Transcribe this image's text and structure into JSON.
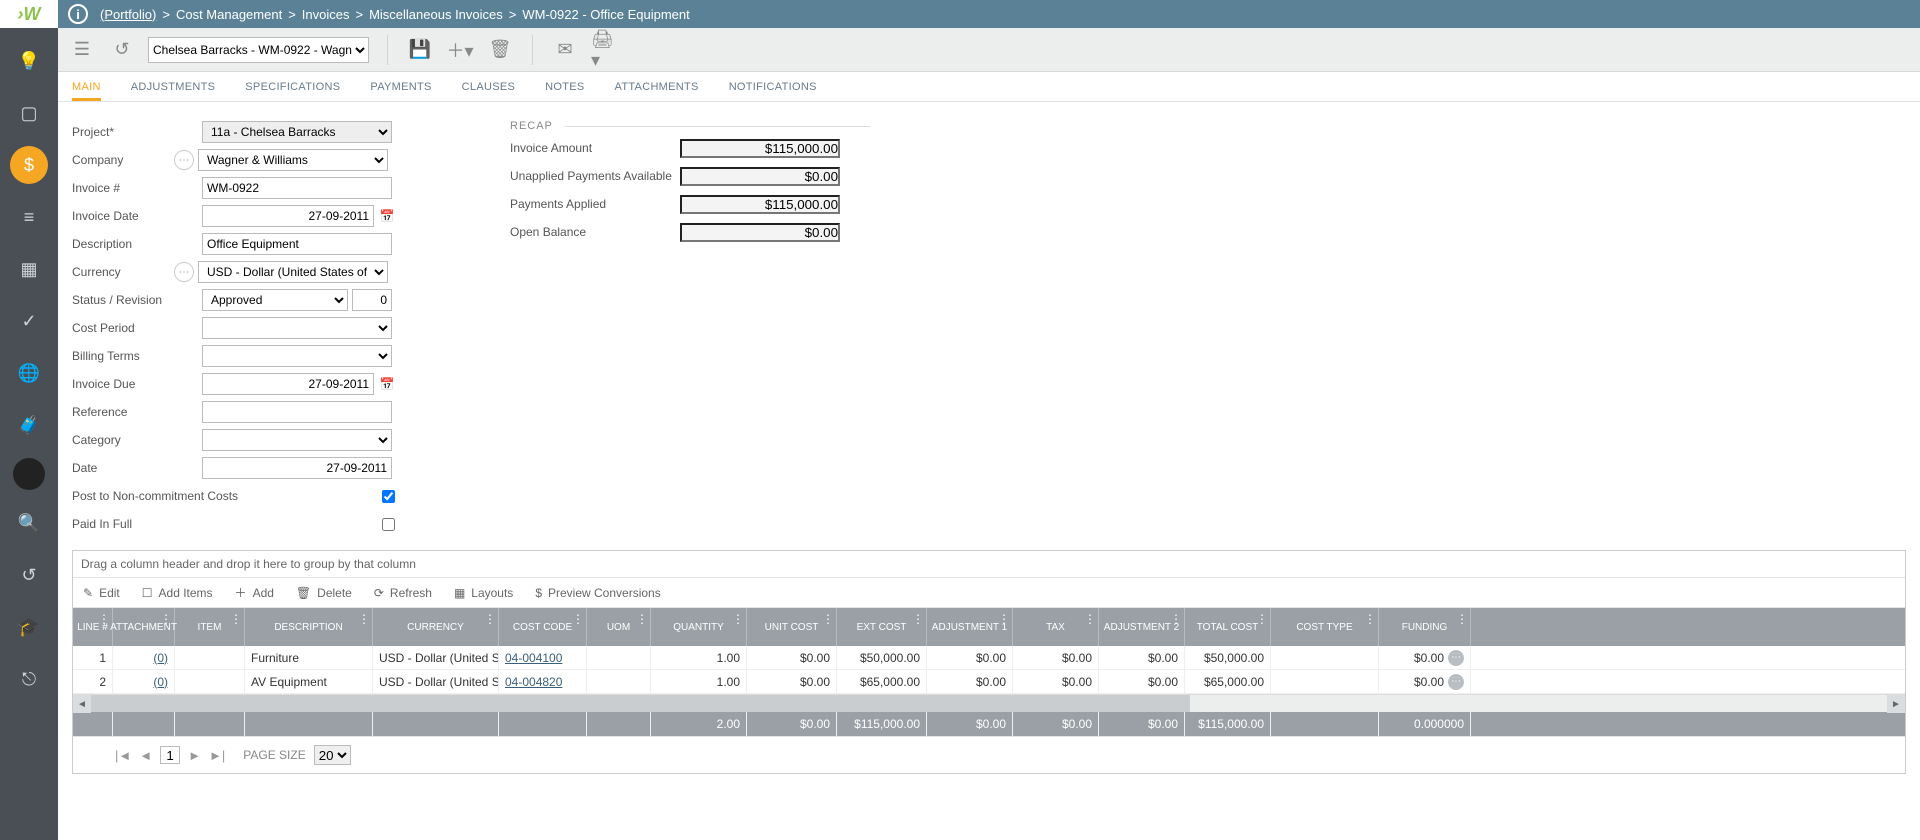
{
  "breadcrumb": {
    "portfolio": "(Portfolio)",
    "parts": [
      "Cost Management",
      "Invoices",
      "Miscellaneous Invoices",
      "WM-0922 - Office Equipment"
    ]
  },
  "toolbar": {
    "context_select": "Chelsea Barracks - WM-0922 - Wagn"
  },
  "tabs": [
    "MAIN",
    "ADJUSTMENTS",
    "SPECIFICATIONS",
    "PAYMENTS",
    "CLAUSES",
    "NOTES",
    "ATTACHMENTS",
    "NOTIFICATIONS"
  ],
  "active_tab": "MAIN",
  "form": {
    "project": "11a - Chelsea Barracks",
    "company": "Wagner & Williams",
    "invoice_no": "WM-0922",
    "invoice_date": "27-09-2011",
    "description": "Office Equipment",
    "currency": "USD - Dollar (United States of Ameri",
    "status": "Approved",
    "revision": "0",
    "cost_period": "",
    "billing_terms": "",
    "invoice_due": "27-09-2011",
    "reference": "",
    "category": "",
    "date": "27-09-2011",
    "post_noncommit": true,
    "paid_in_full": false,
    "labels": {
      "project": "Project",
      "company": "Company",
      "invoice_no": "Invoice #",
      "invoice_date": "Invoice Date",
      "description": "Description",
      "currency": "Currency",
      "status": "Status / Revision",
      "cost_period": "Cost Period",
      "billing_terms": "Billing Terms",
      "invoice_due": "Invoice Due",
      "reference": "Reference",
      "category": "Category",
      "date": "Date",
      "post_noncommit": "Post to Non-commitment Costs",
      "paid_in_full": "Paid In Full"
    }
  },
  "recap": {
    "title": "RECAP",
    "rows": {
      "invoice_amount": {
        "label": "Invoice Amount",
        "value": "$115,000.00"
      },
      "unapplied": {
        "label": "Unapplied Payments Available",
        "value": "$0.00"
      },
      "applied": {
        "label": "Payments Applied",
        "value": "$115,000.00"
      },
      "open_balance": {
        "label": "Open Balance",
        "value": "$0.00"
      }
    }
  },
  "grid": {
    "group_hint": "Drag a column header and drop it here to group by that column",
    "toolbar": {
      "edit": "Edit",
      "add_items": "Add Items",
      "add": "Add",
      "delete": "Delete",
      "refresh": "Refresh",
      "layouts": "Layouts",
      "preview": "Preview Conversions"
    },
    "columns": [
      "LINE #",
      "ATTACHMENT",
      "ITEM",
      "DESCRIPTION",
      "CURRENCY",
      "COST CODE",
      "UOM",
      "QUANTITY",
      "UNIT COST",
      "EXT COST",
      "ADJUSTMENT 1",
      "TAX",
      "ADJUSTMENT 2",
      "TOTAL COST",
      "COST TYPE",
      "FUNDING"
    ],
    "rows": [
      {
        "line": "1",
        "att": "(0)",
        "item": "",
        "desc": "Furniture",
        "curr": "USD - Dollar (United Sta",
        "code": "04-004100",
        "uom": "",
        "qty": "1.00",
        "unit": "$0.00",
        "ext": "$50,000.00",
        "a1": "$0.00",
        "tax": "$0.00",
        "a2": "$0.00",
        "total": "$50,000.00",
        "type": "",
        "fund": "$0.00"
      },
      {
        "line": "2",
        "att": "(0)",
        "item": "",
        "desc": "AV Equipment",
        "curr": "USD - Dollar (United Sta",
        "code": "04-004820",
        "uom": "",
        "qty": "1.00",
        "unit": "$0.00",
        "ext": "$65,000.00",
        "a1": "$0.00",
        "tax": "$0.00",
        "a2": "$0.00",
        "total": "$65,000.00",
        "type": "",
        "fund": "$0.00"
      }
    ],
    "totals": {
      "qty": "2.00",
      "unit": "$0.00",
      "ext": "$115,000.00",
      "a1": "$0.00",
      "tax": "$0.00",
      "a2": "$0.00",
      "total": "$115,000.00",
      "fund": "0.000000"
    },
    "scroll_thumb_pct": 60,
    "pager": {
      "page": "1",
      "page_size": "20",
      "label": "PAGE SIZE"
    }
  },
  "colors": {
    "rail": "#4a4f55",
    "accent": "#f5a623",
    "crumb": "#5a8196",
    "grid_head": "#9aa0a5"
  }
}
